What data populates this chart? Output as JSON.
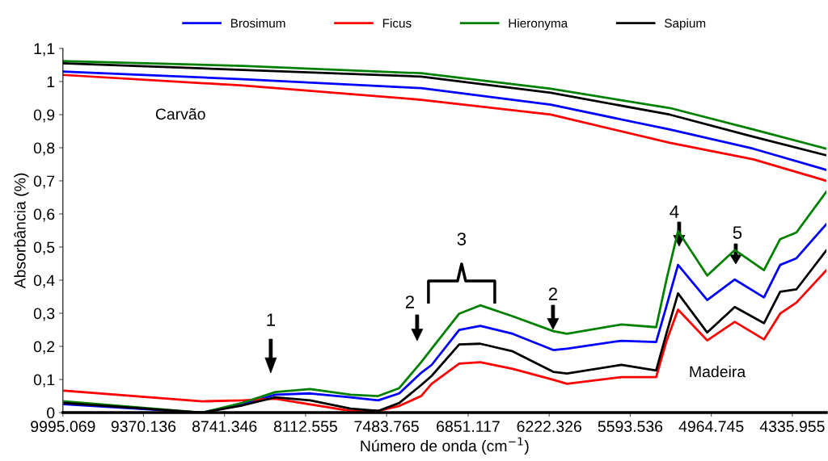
{
  "chart_data": {
    "type": "line",
    "xlabel": "Número de onda (cm$^{−1}$)",
    "ylabel": "Absorbância (%)",
    "xlim": [
      9995.069,
      4072
    ],
    "xticks": [
      9995.069,
      9370.136,
      8741.346,
      8112.555,
      7483.765,
      6851.117,
      6222.326,
      5593.536,
      4964.745,
      4335.955
    ],
    "ylim": [
      0,
      1.1
    ],
    "yticks": [
      {
        "value": 0,
        "label": "0"
      },
      {
        "value": 0.1,
        "label": "0,1"
      },
      {
        "value": 0.2,
        "label": "0,2"
      },
      {
        "value": 0.3,
        "label": "0,3"
      },
      {
        "value": 0.4,
        "label": "0,4"
      },
      {
        "value": 0.5,
        "label": "0,5"
      },
      {
        "value": 0.6,
        "label": "0,6"
      },
      {
        "value": 0.7,
        "label": "0,7"
      },
      {
        "value": 0.8,
        "label": "0,8"
      },
      {
        "value": 0.9,
        "label": "0,9"
      },
      {
        "value": 1,
        "label": "1"
      },
      {
        "value": 1.1,
        "label": "1,1"
      }
    ],
    "grid": false,
    "legend": "top",
    "marker": "none",
    "line_style": "solid",
    "series": [
      {
        "name": "Brosimum",
        "color": "#0000ff",
        "x": [
          9995,
          8599,
          7216,
          6210,
          5286,
          4638,
          4072
        ],
        "values": [
          1.03,
          1.007,
          0.98,
          0.93,
          0.855,
          0.797,
          0.733
        ]
      },
      {
        "name": "Ficus",
        "color": "#ff0000",
        "x": [
          9995,
          8599,
          7216,
          6210,
          5286,
          4638,
          4072
        ],
        "values": [
          1.02,
          0.988,
          0.945,
          0.9,
          0.815,
          0.765,
          0.7
        ]
      },
      {
        "name": "Hieronyma",
        "color": "#008000",
        "x": [
          9995,
          8599,
          7216,
          6210,
          5286,
          4638,
          4072
        ],
        "values": [
          1.062,
          1.047,
          1.025,
          0.978,
          0.92,
          0.855,
          0.797
        ]
      },
      {
        "name": "Sapium",
        "color": "#000000",
        "x": [
          9995,
          8599,
          7216,
          6210,
          5286,
          4638,
          4072
        ],
        "values": [
          1.055,
          1.035,
          1.015,
          0.966,
          0.9,
          0.833,
          0.777
        ]
      },
      {
        "color": "#0000ff",
        "x": [
          9982.5,
          8913.5,
          8599.1,
          8347.6,
          8077.3,
          7762.9,
          7549.1,
          7385.6,
          7215.9,
          7134.1,
          6920.3,
          6756.8,
          6505.3,
          6190.9,
          6084.0,
          5662.7,
          5392.4,
          5310.6,
          5222.6,
          4996.2,
          4782.4,
          4556.0,
          4430.3,
          4304.5,
          4072.0
        ],
        "values": [
          0.025,
          0.0,
          0.025,
          0.054,
          0.058,
          0.046,
          0.037,
          0.058,
          0.12,
          0.144,
          0.25,
          0.262,
          0.238,
          0.189,
          0.193,
          0.217,
          0.213,
          0.324,
          0.446,
          0.34,
          0.402,
          0.348,
          0.446,
          0.466,
          0.569
        ]
      },
      {
        "color": "#ff0000",
        "x": [
          9982.5,
          8913.5,
          8599.1,
          8347.6,
          8077.3,
          7762.9,
          7549.1,
          7385.6,
          7215.9,
          7134.1,
          6920.3,
          6756.8,
          6505.3,
          6190.9,
          6084.0,
          5662.7,
          5392.4,
          5310.6,
          5222.6,
          4996.2,
          4782.4,
          4556.0,
          4430.3,
          4304.5,
          4072.0
        ],
        "values": [
          0.066,
          0.034,
          0.037,
          0.042,
          0.025,
          0.005,
          0.005,
          0.02,
          0.05,
          0.087,
          0.148,
          0.152,
          0.132,
          0.099,
          0.087,
          0.107,
          0.107,
          0.218,
          0.311,
          0.218,
          0.274,
          0.221,
          0.299,
          0.332,
          0.43
        ]
      },
      {
        "color": "#008000",
        "x": [
          9982.5,
          8913.5,
          8599.1,
          8347.6,
          8077.3,
          7762.9,
          7549.1,
          7385.6,
          7215.9,
          7134.1,
          6920.3,
          6756.8,
          6505.3,
          6190.9,
          6084.0,
          5662.7,
          5392.4,
          5310.6,
          5222.6,
          4996.2,
          4782.4,
          4556.0,
          4430.3,
          4304.5,
          4072.0
        ],
        "values": [
          0.034,
          0.0,
          0.03,
          0.062,
          0.071,
          0.054,
          0.05,
          0.074,
          0.152,
          0.193,
          0.299,
          0.324,
          0.291,
          0.246,
          0.238,
          0.266,
          0.258,
          0.405,
          0.548,
          0.414,
          0.491,
          0.43,
          0.524,
          0.544,
          0.667
        ]
      },
      {
        "color": "#000000",
        "x": [
          9982.5,
          8913.5,
          8599.1,
          8347.6,
          8077.3,
          7762.9,
          7549.1,
          7385.6,
          7215.9,
          7134.1,
          6920.3,
          6756.8,
          6505.3,
          6190.9,
          6084.0,
          5662.7,
          5392.4,
          5310.6,
          5222.6,
          4996.2,
          4782.4,
          4556.0,
          4430.3,
          4304.5,
          4072.0
        ],
        "values": [
          0.029,
          0.0,
          0.022,
          0.046,
          0.037,
          0.012,
          0.005,
          0.029,
          0.083,
          0.111,
          0.206,
          0.208,
          0.185,
          0.123,
          0.118,
          0.144,
          0.127,
          0.242,
          0.36,
          0.242,
          0.319,
          0.27,
          0.365,
          0.372,
          0.49
        ]
      }
    ],
    "annotations": [
      "1",
      "2",
      "3",
      "2",
      "4",
      "5",
      "Carvão",
      "Madeira"
    ]
  }
}
